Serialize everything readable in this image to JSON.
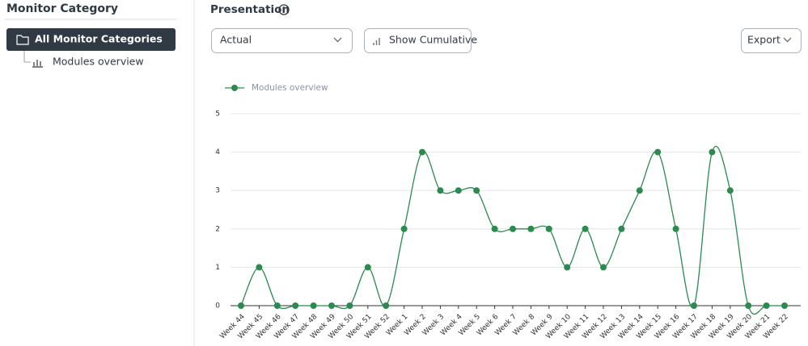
{
  "sidebar": {
    "title": "Monitor Category",
    "items": [
      {
        "label": "All Monitor Categories"
      },
      {
        "label": "Modules overview"
      }
    ]
  },
  "toolbar": {
    "title": "Presentation",
    "view_select": "Actual",
    "cumulative_button": "Show Cumulative",
    "export_button": "Export"
  },
  "chart_data": {
    "type": "line",
    "categories": [
      "Week 44",
      "Week 45",
      "Week 46",
      "Week 47",
      "Week 48",
      "Week 49",
      "Week 50",
      "Week 51",
      "Week 52",
      "Week 1",
      "Week 2",
      "Week 3",
      "Week 4",
      "Week 5",
      "Week 6",
      "Week 7",
      "Week 8",
      "Week 9",
      "Week 10",
      "Week 11",
      "Week 12",
      "Week 13",
      "Week 14",
      "Week 15",
      "Week 16",
      "Week 17",
      "Week 18",
      "Week 19",
      "Week 20",
      "Week 21",
      "Week 22"
    ],
    "series": [
      {
        "name": "Modules overview",
        "color": "#2b8a4e",
        "values": [
          0,
          1,
          0,
          0,
          0,
          0,
          0,
          1,
          0,
          2,
          4,
          3,
          3,
          3,
          2,
          2,
          2,
          2,
          1,
          2,
          1,
          2,
          3,
          4,
          2,
          0,
          4,
          3,
          0,
          0,
          0
        ]
      }
    ],
    "ylim": [
      0,
      5
    ],
    "yticks": [
      0,
      1,
      2,
      3,
      4,
      5
    ],
    "grid": true,
    "legend": "top-left"
  }
}
